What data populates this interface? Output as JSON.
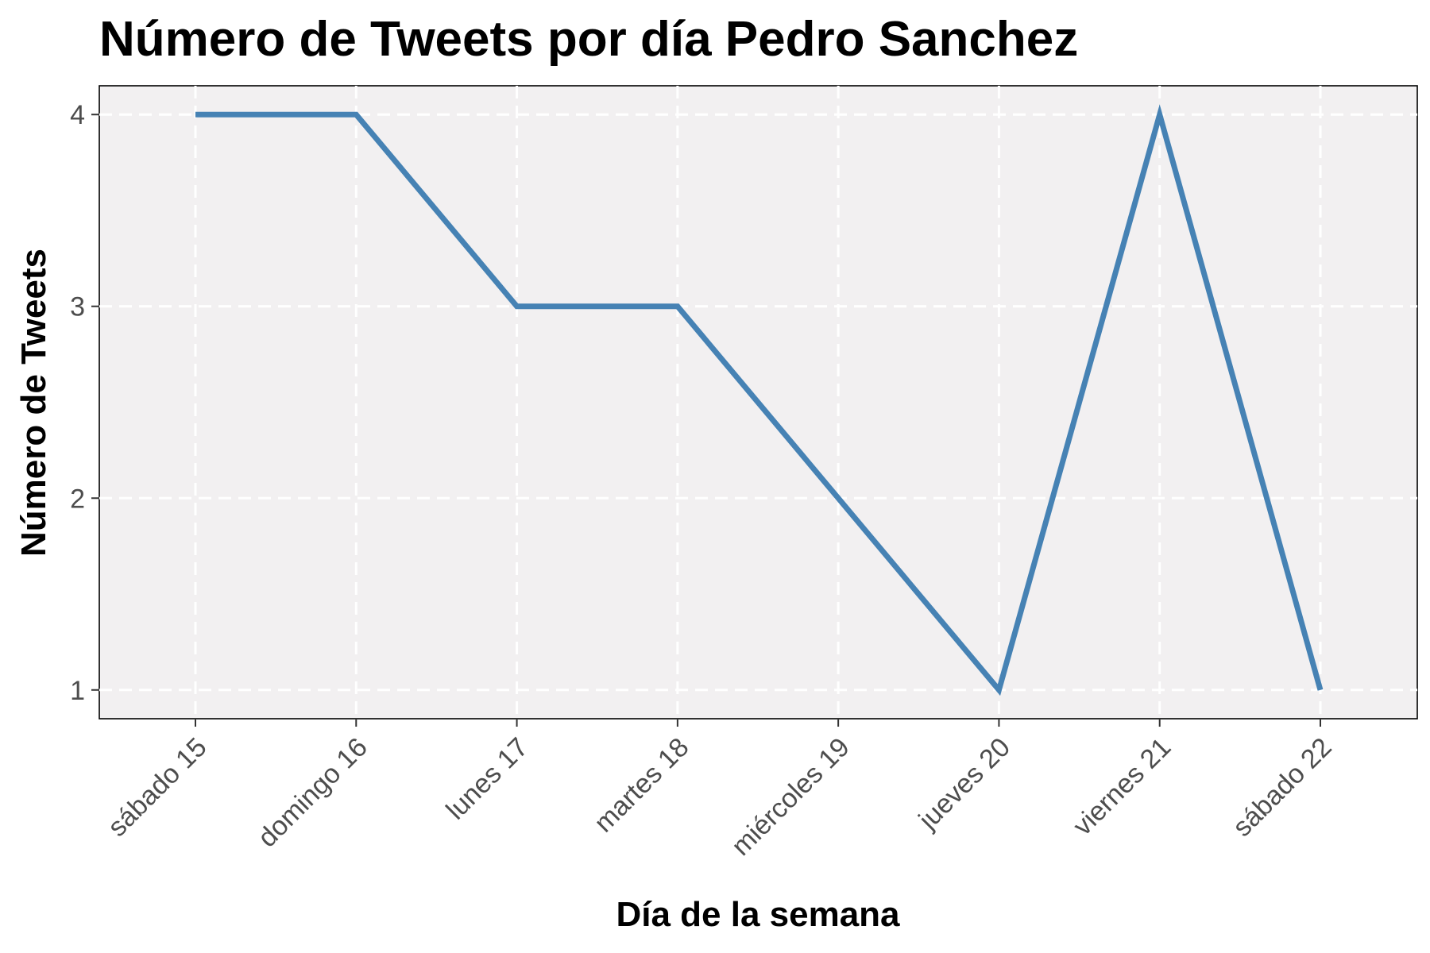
{
  "chart_data": {
    "type": "line",
    "title": "Número de Tweets por día Pedro Sanchez",
    "xlabel": "Día de la semana",
    "ylabel": "Número de Tweets",
    "categories": [
      "sábado 15",
      "domingo 16",
      "lunes 17",
      "martes 18",
      "miércoles 19",
      "jueves 20",
      "viernes 21",
      "sábado 22"
    ],
    "series": [
      {
        "values": [
          4,
          4,
          3,
          3,
          2,
          1,
          4,
          1
        ]
      }
    ],
    "yticks": [
      "1",
      "2",
      "3",
      "4"
    ],
    "ylim": [
      0.85,
      4.15
    ],
    "grid": true,
    "colors": {
      "line": "#4682b4",
      "panel": "#f2f0f1",
      "grid": "#ffffff"
    }
  }
}
